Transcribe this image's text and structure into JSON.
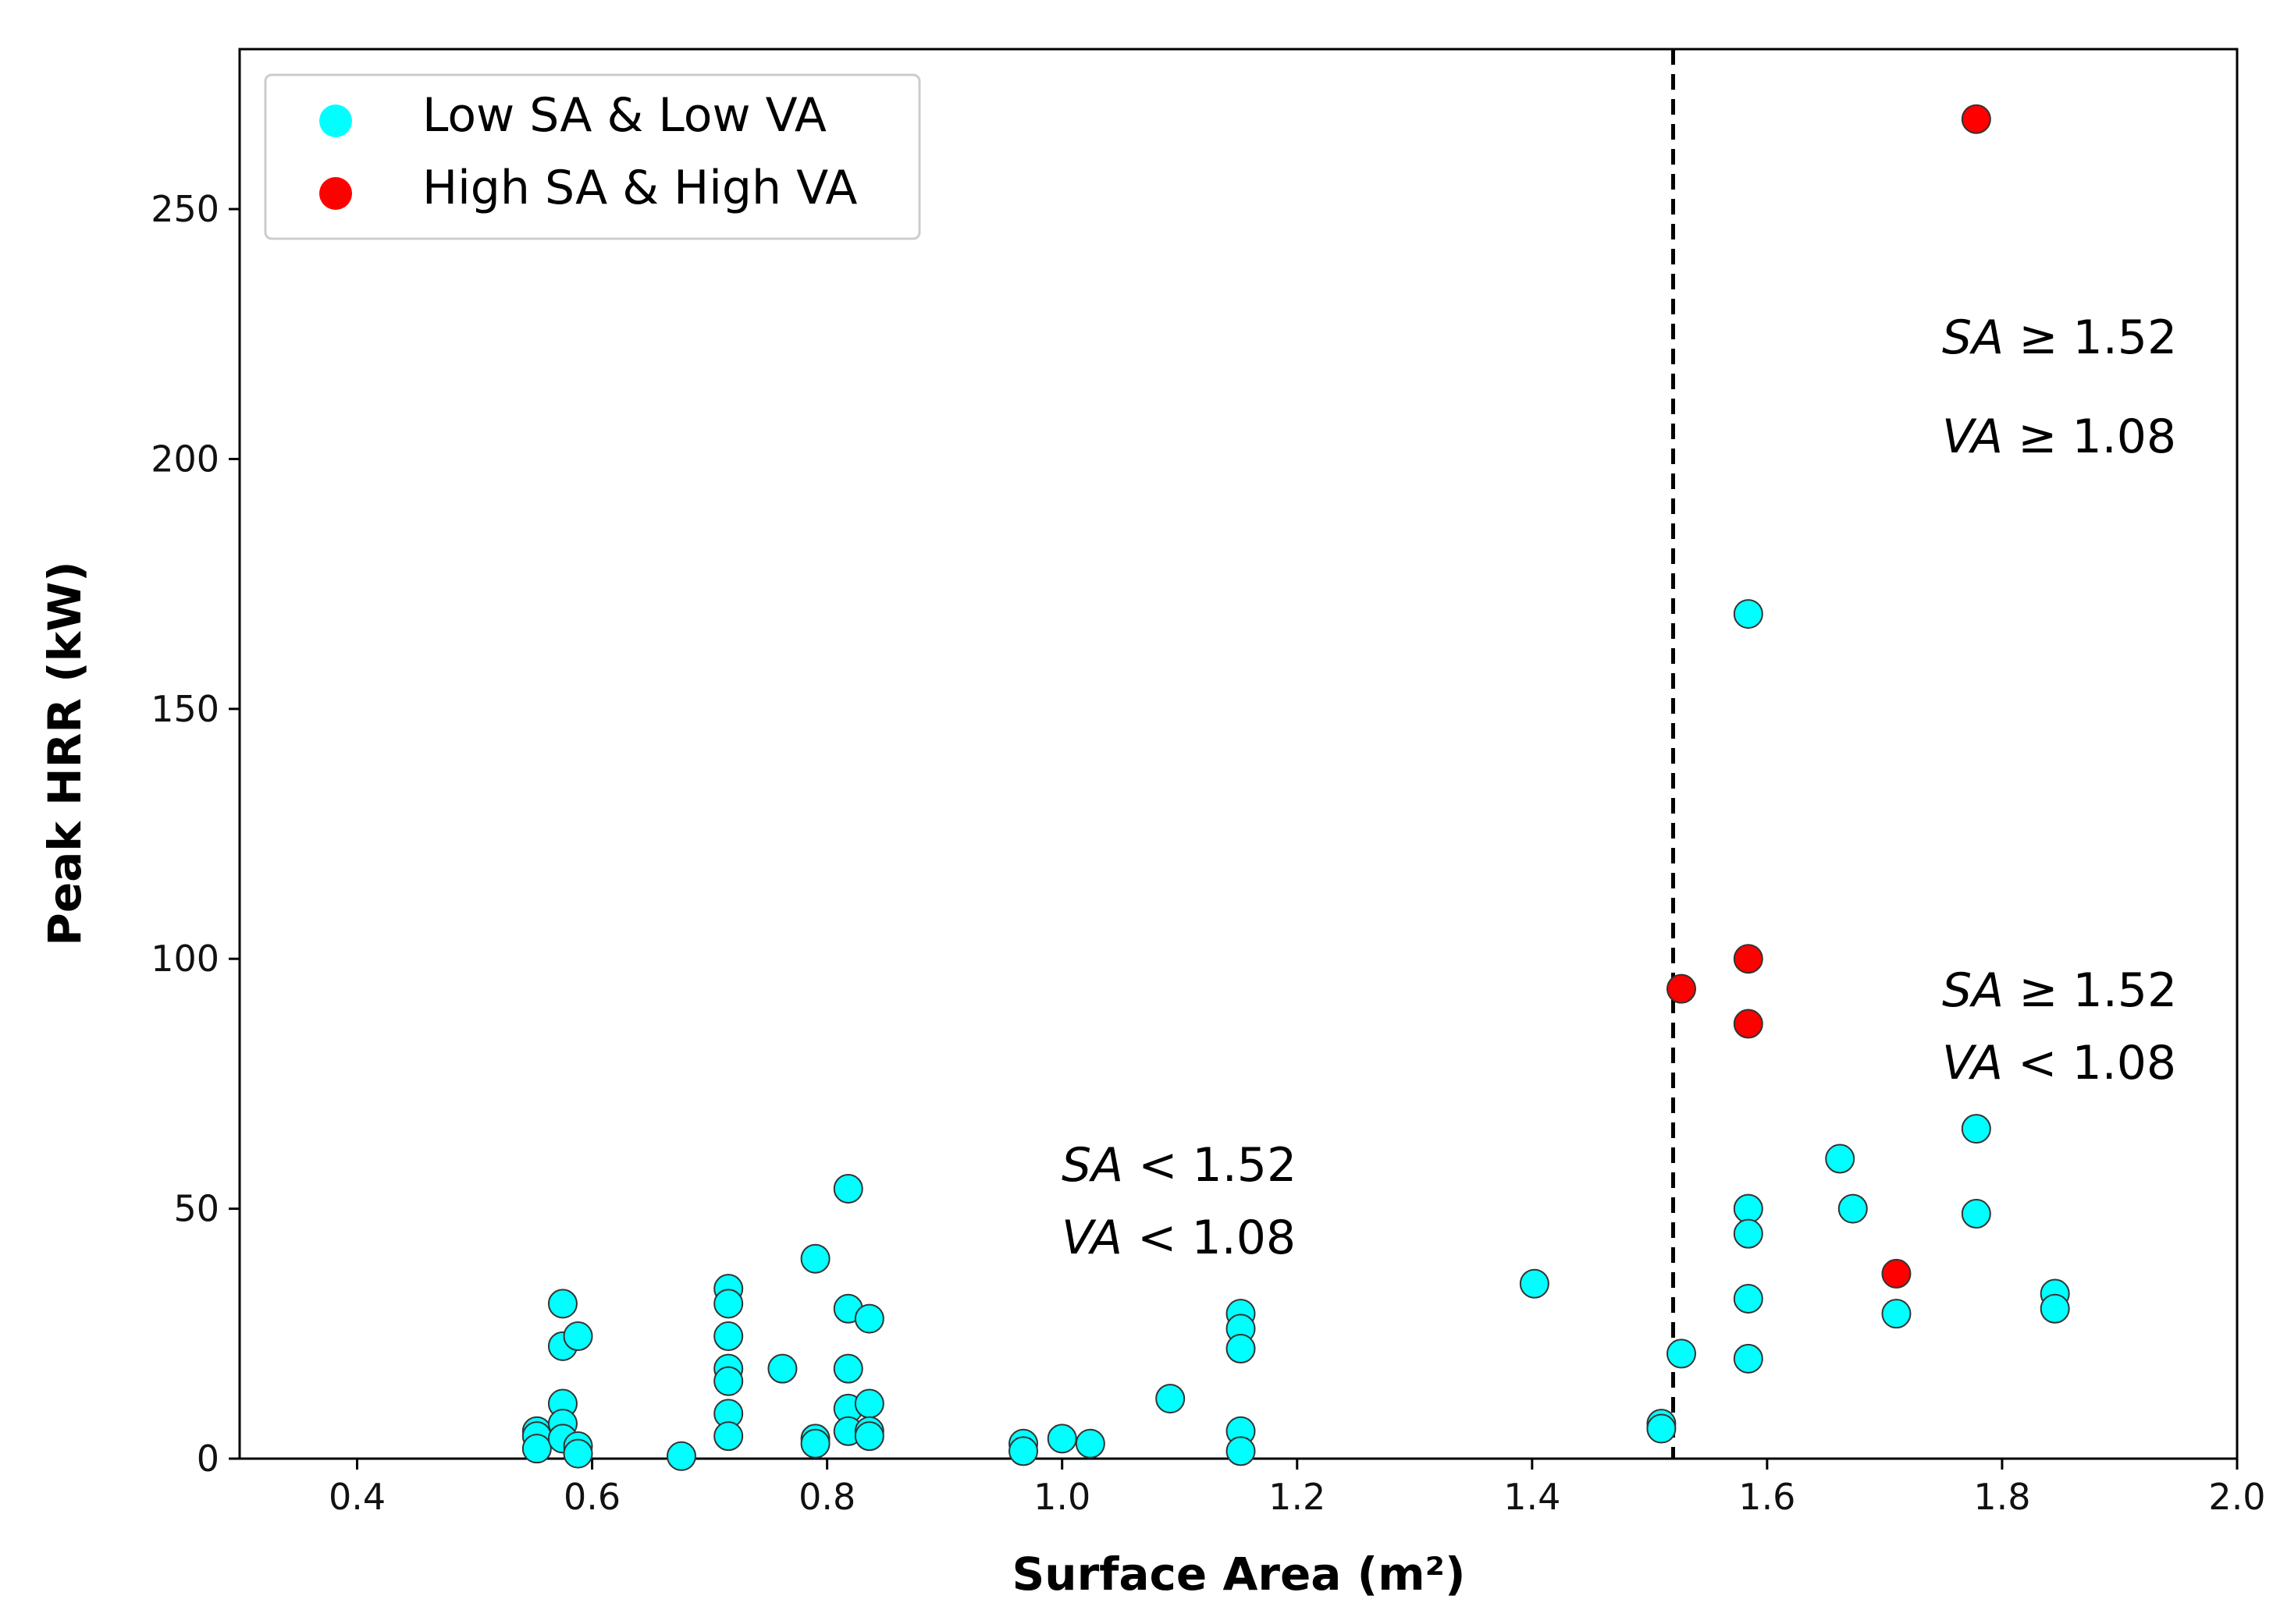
{
  "chart_data": {
    "type": "scatter",
    "title": "",
    "xlabel": "Surface Area (m²)",
    "ylabel": "Peak HRR (kW)",
    "xlim": [
      0.3,
      2.0
    ],
    "ylim": [
      0,
      282
    ],
    "xticks": [
      0.4,
      0.6,
      0.8,
      1.0,
      1.2,
      1.4,
      1.6,
      1.8,
      2.0
    ],
    "xtick_labels": [
      "0.4",
      "0.6",
      "0.8",
      "1.0",
      "1.2",
      "1.4",
      "1.6",
      "1.8",
      "2.0"
    ],
    "yticks": [
      0,
      50,
      100,
      150,
      200,
      250
    ],
    "ytick_labels": [
      "0",
      "50",
      "100",
      "150",
      "200",
      "250"
    ],
    "grid": false,
    "legend_position": "top-left",
    "threshold_line": {
      "x": 1.52,
      "style": "dashed",
      "color": "#000000"
    },
    "series": [
      {
        "name": "Low SA & Low VA",
        "color": "#00FFFF",
        "points": [
          [
            0.553,
            5.5
          ],
          [
            0.553,
            4.5
          ],
          [
            0.553,
            2.0
          ],
          [
            0.575,
            31.0
          ],
          [
            0.575,
            22.5
          ],
          [
            0.575,
            11.0
          ],
          [
            0.575,
            7.0
          ],
          [
            0.575,
            4.0
          ],
          [
            0.588,
            24.5
          ],
          [
            0.588,
            2.5
          ],
          [
            0.588,
            1.0
          ],
          [
            0.676,
            0.5
          ],
          [
            0.716,
            34.0
          ],
          [
            0.716,
            31.0
          ],
          [
            0.716,
            24.5
          ],
          [
            0.716,
            18.0
          ],
          [
            0.716,
            15.5
          ],
          [
            0.716,
            9.0
          ],
          [
            0.716,
            4.5
          ],
          [
            0.762,
            18.0
          ],
          [
            0.79,
            40.0
          ],
          [
            0.79,
            4.0
          ],
          [
            0.79,
            3.0
          ],
          [
            0.818,
            54.0
          ],
          [
            0.818,
            30.0
          ],
          [
            0.818,
            18.0
          ],
          [
            0.818,
            10.0
          ],
          [
            0.818,
            5.5
          ],
          [
            0.836,
            28.0
          ],
          [
            0.836,
            11.0
          ],
          [
            0.836,
            5.5
          ],
          [
            0.836,
            4.5
          ],
          [
            0.967,
            3.0
          ],
          [
            0.967,
            1.5
          ],
          [
            1.0,
            4.0
          ],
          [
            1.024,
            3.0
          ],
          [
            1.092,
            12.0
          ],
          [
            1.152,
            29.0
          ],
          [
            1.152,
            26.0
          ],
          [
            1.152,
            22.0
          ],
          [
            1.152,
            5.5
          ],
          [
            1.152,
            1.5
          ],
          [
            1.402,
            35.0
          ],
          [
            1.51,
            7.0
          ],
          [
            1.51,
            6.0
          ],
          [
            1.527,
            21.0
          ],
          [
            1.584,
            169.0
          ],
          [
            1.584,
            50.0
          ],
          [
            1.584,
            45.0
          ],
          [
            1.584,
            32.0
          ],
          [
            1.584,
            20.0
          ],
          [
            1.662,
            60.0
          ],
          [
            1.673,
            50.0
          ],
          [
            1.71,
            29.0
          ],
          [
            1.778,
            66.0
          ],
          [
            1.778,
            49.0
          ],
          [
            1.845,
            33.0
          ],
          [
            1.845,
            30.0
          ]
        ]
      },
      {
        "name": "High SA & High VA",
        "color": "#FF0000",
        "points": [
          [
            1.778,
            268.0
          ],
          [
            1.527,
            94.0
          ],
          [
            1.584,
            100.0
          ],
          [
            1.584,
            87.0
          ],
          [
            1.71,
            37.0
          ]
        ]
      }
    ],
    "annotations": [
      {
        "var1": "SA",
        "rel1": " ≥ 1.52",
        "var2": "VA",
        "rel2": " ≥ 1.08"
      },
      {
        "var1": "SA",
        "rel1": " ≥ 1.52",
        "var2": "VA",
        "rel2": " < 1.08"
      },
      {
        "var1": "SA",
        "rel1": " < 1.52",
        "var2": "VA",
        "rel2": " < 1.08"
      }
    ]
  }
}
